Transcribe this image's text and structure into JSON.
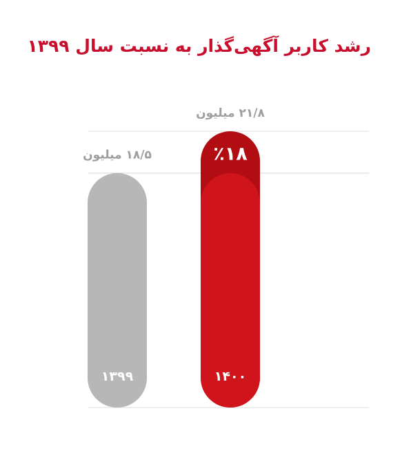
{
  "title": "رشد کاربر آگهی‌گذار به نسبت سال ۱۳۹۹",
  "chart_data": {
    "type": "bar",
    "categories": [
      "۱۳۹۹",
      "۱۴۰۰"
    ],
    "values": [
      18.5,
      21.8
    ],
    "value_labels": [
      "۱۸/۵ میلیون",
      "۲۱/۸ میلیون"
    ],
    "growth": {
      "value": 18,
      "label": "٪۱۸"
    },
    "grid": true,
    "colors": {
      "bar_1399": "#b7b7b7",
      "bar_1400": "#d0141c",
      "growth_segment": "#b30d14",
      "value_text": "#9e9e9e",
      "category_text": "#ffffff",
      "gridline": "#dcdcdc"
    }
  }
}
